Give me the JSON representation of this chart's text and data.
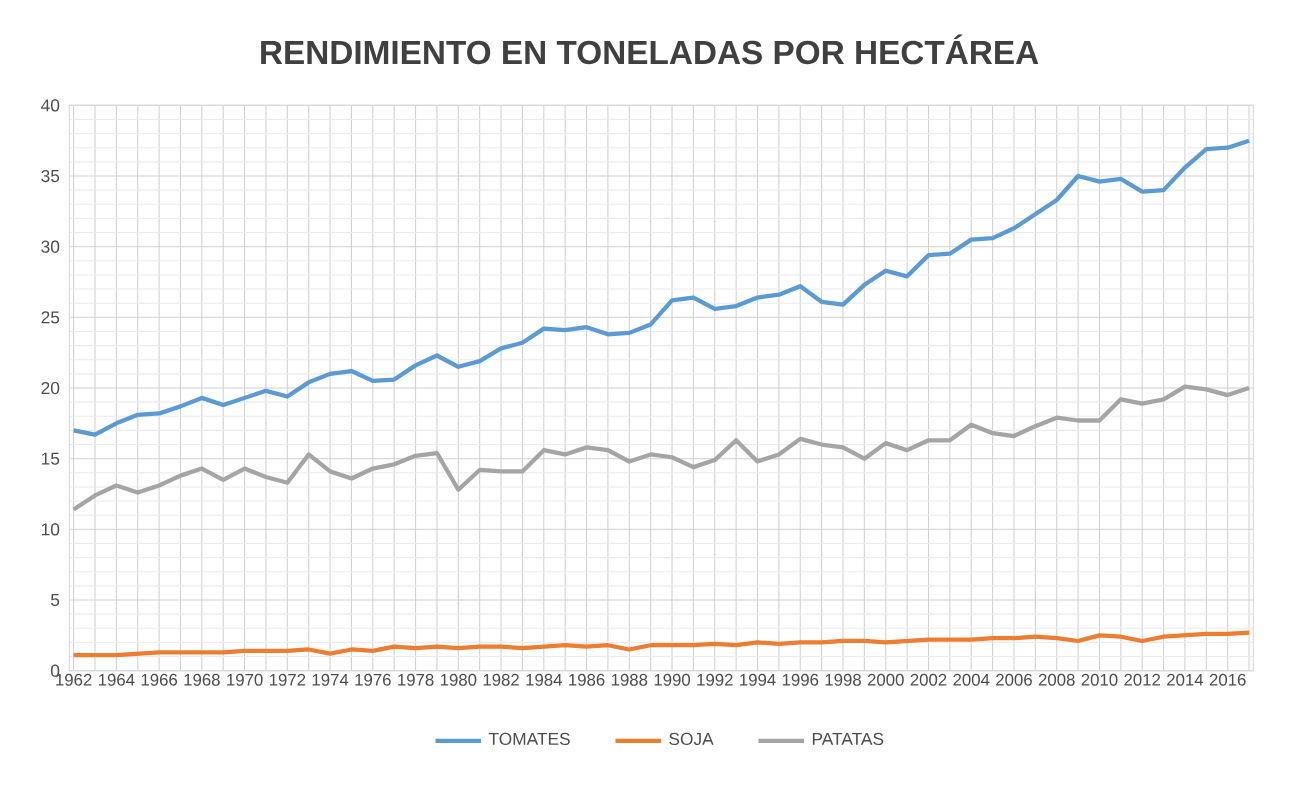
{
  "chart_data": {
    "type": "line",
    "title": "RENDIMIENTO EN TONELADAS POR HECTÁREA",
    "categories": [
      "1962",
      null,
      "1964",
      null,
      "1966",
      null,
      "1968",
      null,
      "1970",
      null,
      "1972",
      null,
      "1974",
      null,
      "1976",
      null,
      "1978",
      null,
      "1980",
      null,
      "1982",
      null,
      "1984",
      null,
      "1986",
      null,
      "1988",
      null,
      "1990",
      null,
      "1992",
      null,
      "1994",
      null,
      "1996",
      null,
      "1998",
      null,
      "2000",
      null,
      "2002",
      null,
      "2004",
      null,
      "2006",
      null,
      "2008",
      null,
      "2010",
      null,
      "2012",
      null,
      "2014",
      null,
      "2016",
      null
    ],
    "series": [
      {
        "name": "TOMATES",
        "color": "#5b9bd5",
        "values": [
          17.0,
          16.7,
          17.5,
          18.1,
          18.2,
          18.7,
          19.3,
          18.8,
          19.3,
          19.8,
          19.4,
          20.4,
          21.0,
          21.2,
          20.5,
          20.6,
          21.6,
          22.3,
          21.5,
          21.9,
          22.8,
          23.2,
          24.2,
          24.1,
          24.3,
          23.8,
          23.9,
          24.5,
          26.2,
          26.4,
          25.6,
          25.8,
          26.4,
          26.6,
          27.2,
          26.1,
          25.9,
          27.3,
          28.3,
          27.9,
          29.4,
          29.5,
          30.5,
          30.6,
          31.3,
          32.3,
          33.3,
          35.0,
          34.6,
          34.8,
          33.9,
          34.0,
          35.6,
          36.9,
          37.0,
          37.5
        ]
      },
      {
        "name": "SOJA",
        "color": "#ed7d31",
        "values": [
          1.1,
          1.1,
          1.1,
          1.2,
          1.3,
          1.3,
          1.3,
          1.3,
          1.4,
          1.4,
          1.4,
          1.5,
          1.2,
          1.5,
          1.4,
          1.7,
          1.6,
          1.7,
          1.6,
          1.7,
          1.7,
          1.6,
          1.7,
          1.8,
          1.7,
          1.8,
          1.5,
          1.8,
          1.8,
          1.8,
          1.9,
          1.8,
          2.0,
          1.9,
          2.0,
          2.0,
          2.1,
          2.1,
          2.0,
          2.1,
          2.2,
          2.2,
          2.2,
          2.3,
          2.3,
          2.4,
          2.3,
          2.1,
          2.5,
          2.4,
          2.1,
          2.4,
          2.5,
          2.6,
          2.6,
          2.7
        ]
      },
      {
        "name": "PATATAS",
        "color": "#a5a5a5",
        "values": [
          11.4,
          12.4,
          13.1,
          12.6,
          13.1,
          13.8,
          14.3,
          13.5,
          14.3,
          13.7,
          13.3,
          15.3,
          14.1,
          13.6,
          14.3,
          14.6,
          15.2,
          15.4,
          12.8,
          14.2,
          14.1,
          14.1,
          15.6,
          15.3,
          15.8,
          15.6,
          14.8,
          15.3,
          15.1,
          14.4,
          14.9,
          16.3,
          14.8,
          15.3,
          16.4,
          16.0,
          15.8,
          15.0,
          16.1,
          15.6,
          16.3,
          16.3,
          17.4,
          16.8,
          16.6,
          17.3,
          17.9,
          17.7,
          17.7,
          19.2,
          18.9,
          19.2,
          20.1,
          19.9,
          19.5,
          20.0
        ]
      }
    ],
    "ylim": [
      0,
      40
    ],
    "yticks": [
      0,
      5,
      10,
      15,
      20,
      25,
      30,
      35,
      40
    ],
    "grid": true,
    "legend": "bottom",
    "marker": "none",
    "line_style": "solid"
  }
}
